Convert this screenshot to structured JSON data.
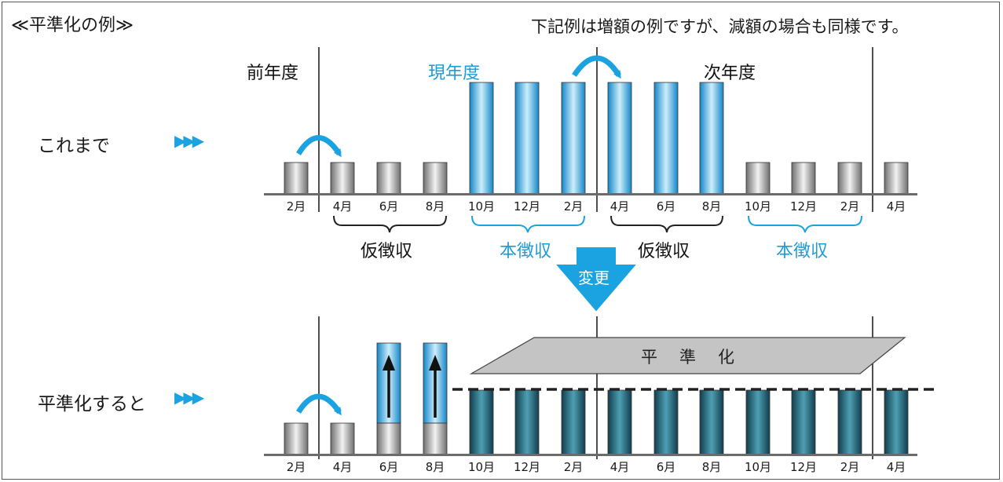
{
  "title": "≪平準化の例≫",
  "note": "下記例は増額の例ですが、減額の場合も同様です。",
  "row1": {
    "label": "これまで",
    "arrows": "▶▶▶"
  },
  "row2": {
    "label": "平準化すると",
    "arrows": "▶▶▶"
  },
  "years": {
    "prev": "前年度",
    "current": "現年度",
    "next": "次年度"
  },
  "brackets": [
    "仮徴収",
    "本徴収",
    "仮徴収",
    "本徴収"
  ],
  "change_label": "変更",
  "flat_label": "平準化",
  "months": [
    "2月",
    "4月",
    "6月",
    "8月",
    "10月",
    "12月",
    "2月",
    "4月",
    "6月",
    "8月",
    "10月",
    "12月",
    "2月",
    "4月"
  ],
  "colors": {
    "accent": "#1aa3e0",
    "blue_text": "#1f9ad6",
    "dark_bar": "#2a6f80",
    "gray_bar": "#9a9a9a"
  },
  "row1_bars": [
    "low",
    "low",
    "low",
    "low",
    "high",
    "high",
    "high",
    "high",
    "high",
    "high",
    "low",
    "low",
    "low",
    "low"
  ],
  "row2_bars": [
    "low",
    "low",
    "raised",
    "raised",
    "flat",
    "flat",
    "flat",
    "flat",
    "flat",
    "flat",
    "flat",
    "flat",
    "flat",
    "flat"
  ]
}
